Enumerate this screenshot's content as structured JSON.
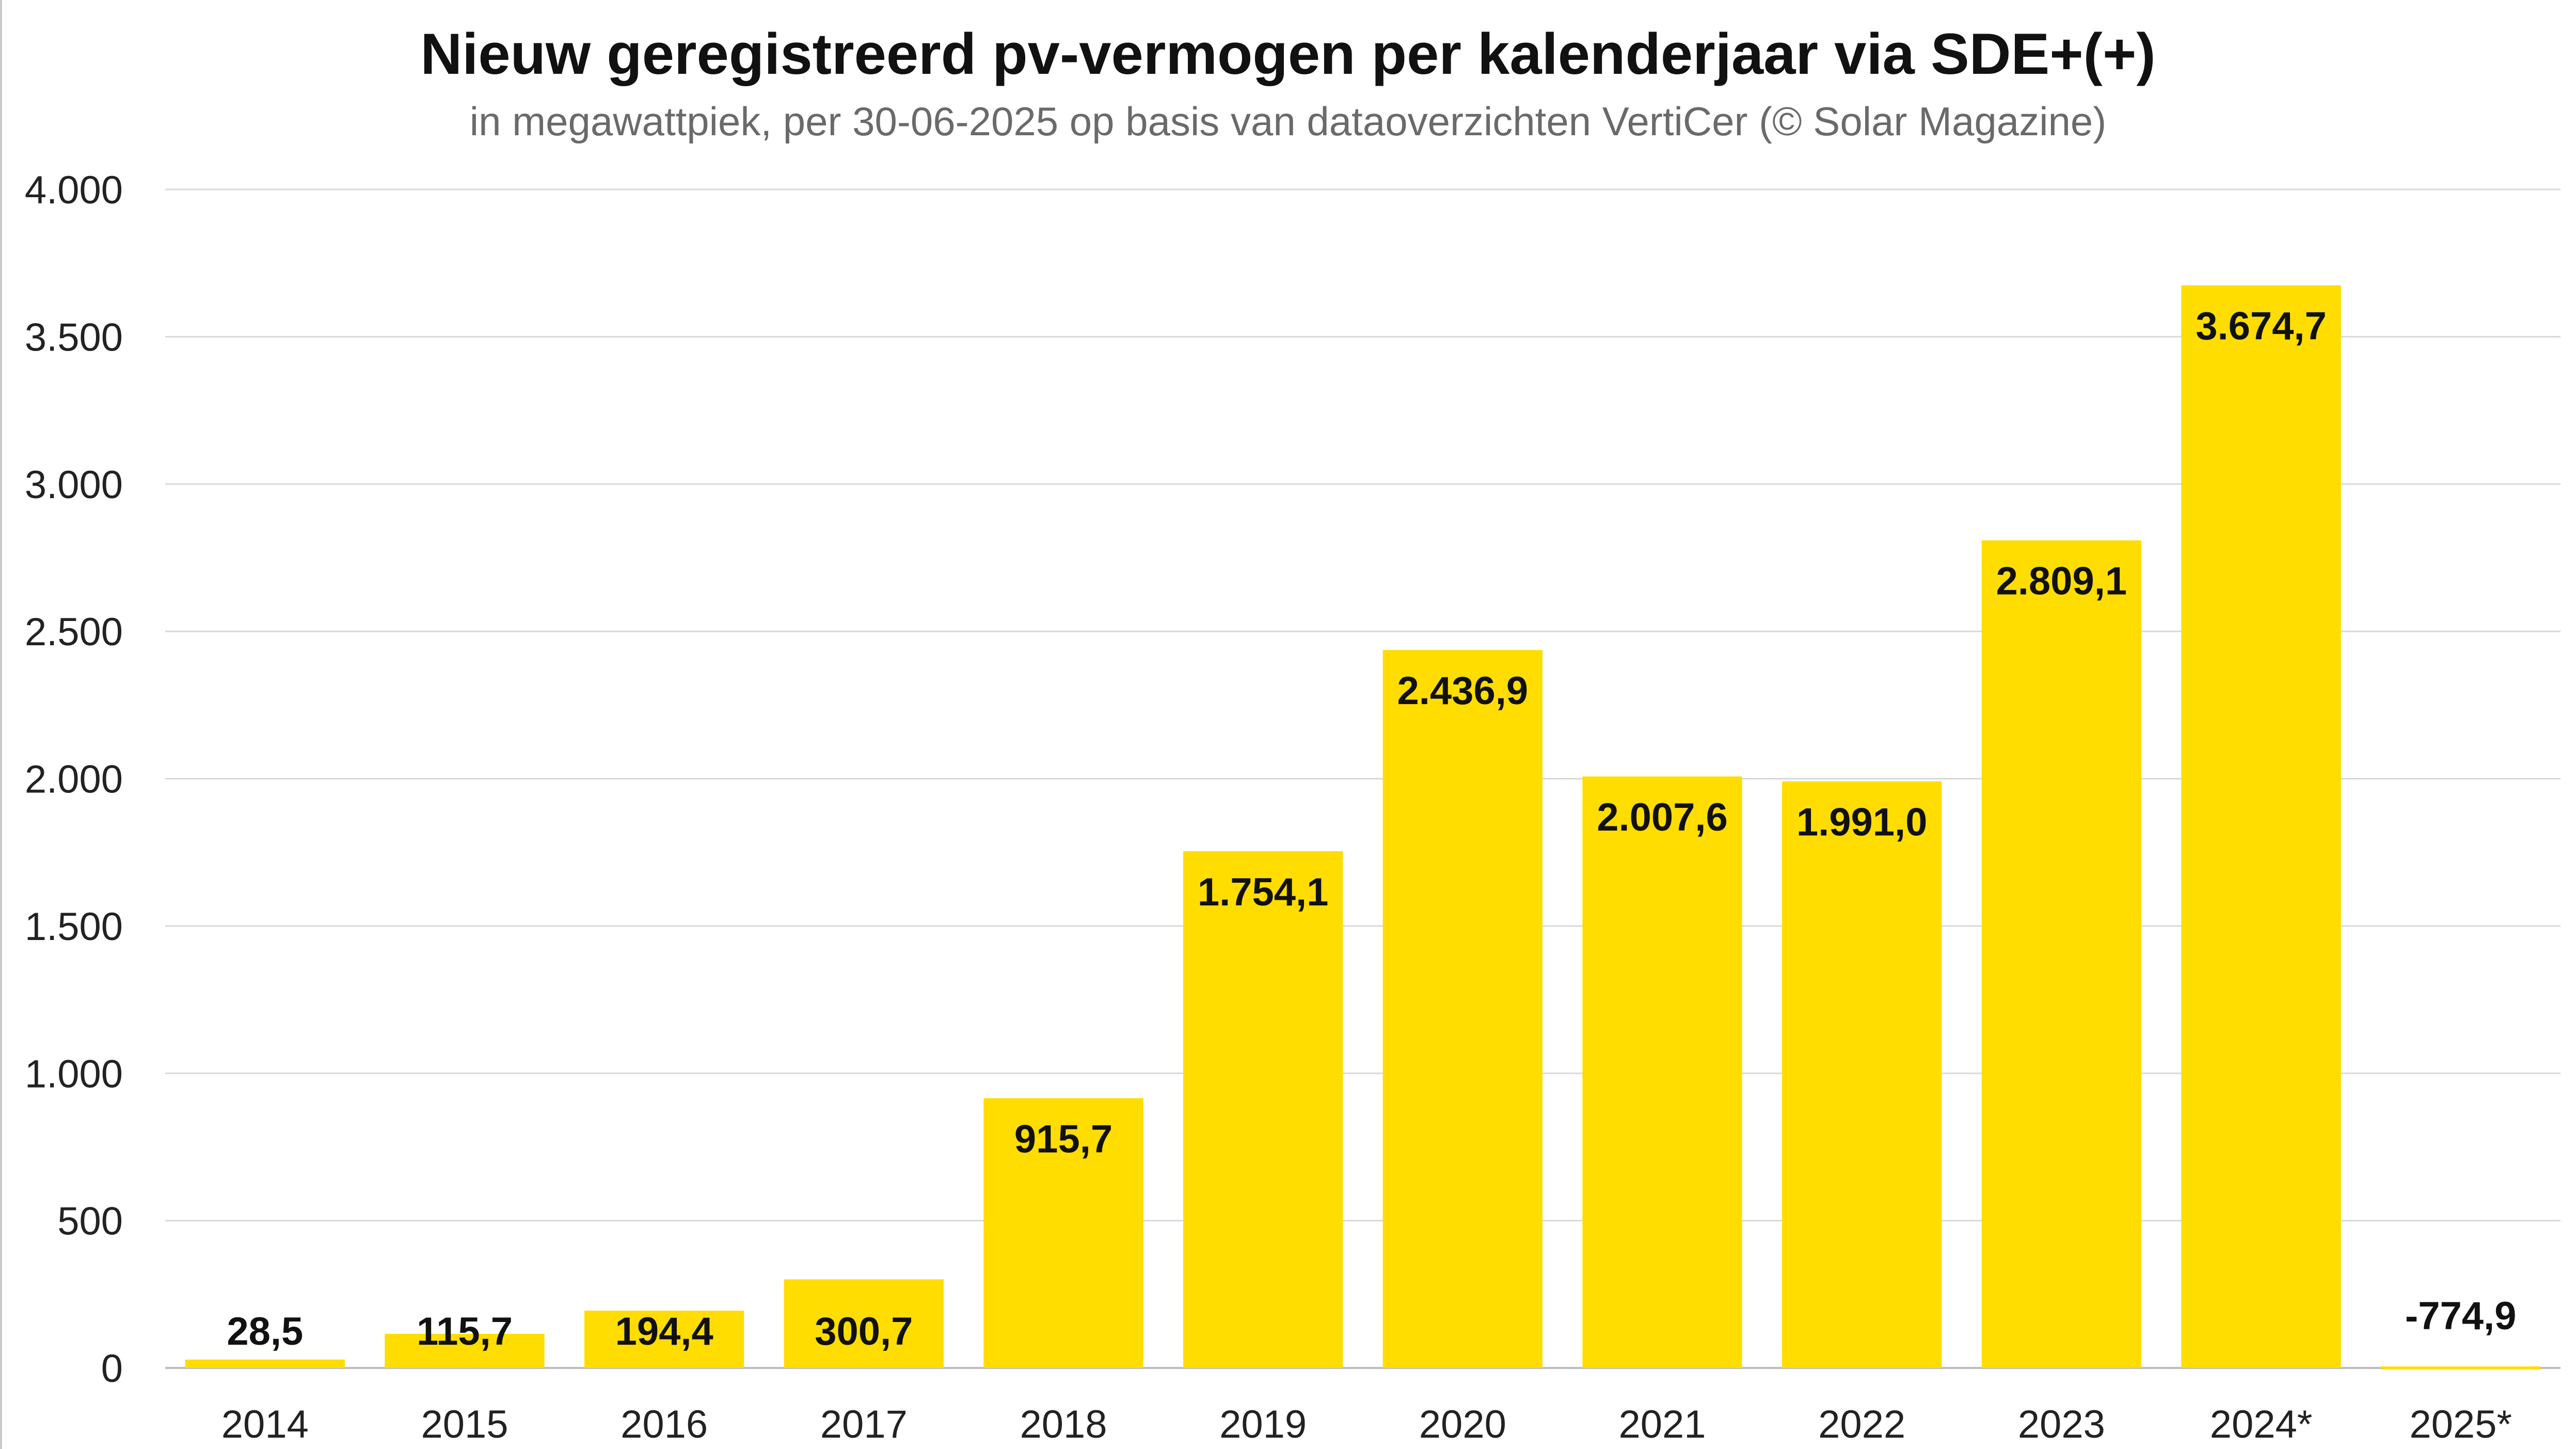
{
  "chart_data": {
    "type": "bar",
    "title": "Nieuw geregistreerd pv-vermogen per kalenderjaar via SDE+(+)",
    "subtitle": "in megawattpiek, per 30-06-2025 op basis van dataoverzichten VertiCer (© Solar Magazine)",
    "xlabel": "",
    "ylabel": "",
    "categories": [
      "2014",
      "2015",
      "2016",
      "2017",
      "2018",
      "2019",
      "2020",
      "2021",
      "2022",
      "2023",
      "2024*",
      "2025*"
    ],
    "values": [
      28.5,
      115.7,
      194.4,
      300.7,
      915.7,
      1754.1,
      2436.9,
      2007.6,
      1991.0,
      2809.1,
      3674.7,
      -774.9
    ],
    "data_labels": [
      "28,5",
      "115,7",
      "194,4",
      "300,7",
      "915,7",
      "1.754,1",
      "2.436,9",
      "2.007,6",
      "1.991,0",
      "2.809,1",
      "3.674,7",
      "-774,9"
    ],
    "ylim": [
      0,
      4000
    ],
    "yticks": [
      0,
      500,
      1000,
      1500,
      2000,
      2500,
      3000,
      3500,
      4000
    ],
    "ytick_labels": [
      "0",
      "500",
      "1.000",
      "1.500",
      "2.000",
      "2.500",
      "3.000",
      "3.500",
      "4.000"
    ],
    "grid": true,
    "legend": "none",
    "colors": {
      "bar": "#FFDD00",
      "grid": "#d9d9d9",
      "axis": "#bdbdbd",
      "text": "#111111"
    }
  }
}
